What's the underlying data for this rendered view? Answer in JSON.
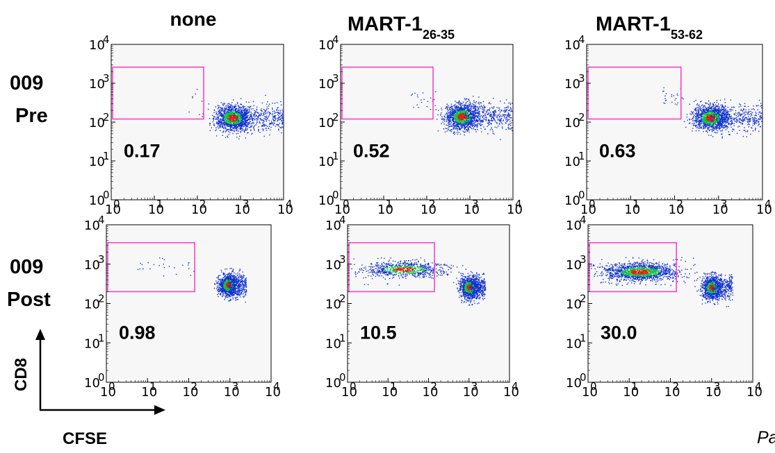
{
  "figure": {
    "column_headers": [
      {
        "main": "none",
        "sub": ""
      },
      {
        "main": "MART-1",
        "sub": "26-35"
      },
      {
        "main": "MART-1",
        "sub": "53-62"
      }
    ],
    "row_headers": [
      {
        "line1": "009",
        "line2": "Pre"
      },
      {
        "line1": "009",
        "line2": "Post"
      }
    ],
    "x_axis_label": "CFSE",
    "y_axis_label": "CD8",
    "corner_note": "Pa",
    "colors": {
      "gate": "#ff33cc",
      "panel_bg": "#f7f7f7",
      "density_low": "#1030d0",
      "density_mid": "#10c040",
      "density_high": "#e02010"
    }
  },
  "chart_data": [
    {
      "type": "scatter",
      "row_label": "009 Pre",
      "column_label": "none",
      "gate_percent": "0.17",
      "xscale": "log",
      "yscale": "log",
      "xlim": [
        1,
        10000
      ],
      "ylim": [
        1,
        10000
      ],
      "x_tick_labels": [
        "10",
        "10",
        "10",
        "10",
        "10"
      ],
      "x_tick_exponents": [
        "0",
        "1",
        "2",
        "3",
        "4"
      ],
      "y_tick_labels": [
        "10",
        "10",
        "10",
        "10",
        "10"
      ],
      "y_tick_exponents": [
        "0",
        "1",
        "2",
        "3",
        "4"
      ],
      "gate": {
        "x": [
          1,
          140
        ],
        "y": [
          120,
          2600
        ]
      },
      "clusters": [
        {
          "center": [
            650,
            130
          ],
          "spread": [
            0.2,
            0.16
          ],
          "count": 1300,
          "tail_to": 9500
        }
      ],
      "scatter_events": {
        "x": [
          60,
          140
        ],
        "y": [
          120,
          1000
        ],
        "count": 8
      }
    },
    {
      "type": "scatter",
      "row_label": "009 Pre",
      "column_label": "MART-126-35",
      "gate_percent": "0.52",
      "xscale": "log",
      "yscale": "log",
      "xlim": [
        1,
        10000
      ],
      "ylim": [
        1,
        10000
      ],
      "x_tick_labels": [
        "10",
        "10",
        "10",
        "10",
        "10"
      ],
      "x_tick_exponents": [
        "0",
        "1",
        "2",
        "3",
        "4"
      ],
      "y_tick_labels": [
        "10",
        "10",
        "10",
        "10",
        "10"
      ],
      "y_tick_exponents": [
        "0",
        "1",
        "2",
        "3",
        "4"
      ],
      "gate": {
        "x": [
          1,
          140
        ],
        "y": [
          120,
          2600
        ]
      },
      "clusters": [
        {
          "center": [
            650,
            140
          ],
          "spread": [
            0.2,
            0.16
          ],
          "count": 1300,
          "tail_to": 9500
        }
      ],
      "scatter_events": {
        "x": [
          40,
          160
        ],
        "y": [
          200,
          900
        ],
        "count": 22
      }
    },
    {
      "type": "scatter",
      "row_label": "009 Pre",
      "column_label": "MART-153-62",
      "gate_percent": "0.63",
      "xscale": "log",
      "yscale": "log",
      "xlim": [
        1,
        10000
      ],
      "ylim": [
        1,
        10000
      ],
      "x_tick_labels": [
        "10",
        "10",
        "10",
        "10",
        "10"
      ],
      "x_tick_exponents": [
        "0",
        "1",
        "2",
        "3",
        "4"
      ],
      "y_tick_labels": [
        "10",
        "10",
        "10",
        "10",
        "10"
      ],
      "y_tick_exponents": [
        "0",
        "1",
        "2",
        "3",
        "4"
      ],
      "gate": {
        "x": [
          1,
          140
        ],
        "y": [
          120,
          2600
        ]
      },
      "clusters": [
        {
          "center": [
            650,
            130
          ],
          "spread": [
            0.2,
            0.16
          ],
          "count": 1300,
          "tail_to": 9500
        }
      ],
      "scatter_events": {
        "x": [
          50,
          160
        ],
        "y": [
          250,
          900
        ],
        "count": 24
      }
    },
    {
      "type": "scatter",
      "row_label": "009 Post",
      "column_label": "none",
      "gate_percent": "0.98",
      "xscale": "log",
      "yscale": "log",
      "xlim": [
        1,
        10000
      ],
      "ylim": [
        1,
        10000
      ],
      "x_tick_labels": [
        "10",
        "10",
        "10",
        "10",
        "10"
      ],
      "x_tick_exponents": [
        "0",
        "1",
        "2",
        "3",
        "4"
      ],
      "y_tick_labels": [
        "10",
        "10",
        "10",
        "10",
        "10"
      ],
      "y_tick_exponents": [
        "0",
        "1",
        "2",
        "3",
        "4"
      ],
      "gate": {
        "x": [
          1,
          140
        ],
        "y": [
          200,
          3500
        ]
      },
      "clusters": [
        {
          "center": [
            900,
            300
          ],
          "spread": [
            0.12,
            0.14
          ],
          "count": 1000,
          "tail_to": 2500
        }
      ],
      "scatter_events": {
        "x": [
          5,
          140
        ],
        "y": [
          500,
          1500
        ],
        "count": 26
      }
    },
    {
      "type": "scatter",
      "row_label": "009 Post",
      "column_label": "MART-126-35",
      "gate_percent": "10.5",
      "xscale": "log",
      "yscale": "log",
      "xlim": [
        1,
        10000
      ],
      "ylim": [
        1,
        10000
      ],
      "x_tick_labels": [
        "10",
        "10",
        "10",
        "10",
        "10"
      ],
      "x_tick_exponents": [
        "0",
        "1",
        "2",
        "3",
        "4"
      ],
      "y_tick_labels": [
        "10",
        "10",
        "10",
        "10",
        "10"
      ],
      "y_tick_exponents": [
        "0",
        "1",
        "2",
        "3",
        "4"
      ],
      "gate": {
        "x": [
          1,
          140
        ],
        "y": [
          200,
          3500
        ]
      },
      "clusters": [
        {
          "center": [
            1000,
            260
          ],
          "spread": [
            0.12,
            0.14
          ],
          "count": 900,
          "tail_to": 2500
        },
        {
          "center": [
            25,
            750
          ],
          "spread": [
            0.5,
            0.1
          ],
          "count": 750,
          "tail_to": null
        }
      ],
      "scatter_events": {
        "x": [
          2,
          180
        ],
        "y": [
          300,
          1500
        ],
        "count": 30
      }
    },
    {
      "type": "scatter",
      "row_label": "009 Post",
      "column_label": "MART-153-62",
      "gate_percent": "30.0",
      "xscale": "log",
      "yscale": "log",
      "xlim": [
        1,
        10000
      ],
      "ylim": [
        1,
        10000
      ],
      "x_tick_labels": [
        "10",
        "10",
        "10",
        "10",
        "10"
      ],
      "x_tick_exponents": [
        "0",
        "1",
        "2",
        "3",
        "4"
      ],
      "y_tick_labels": [
        "10",
        "10",
        "10",
        "10",
        "10"
      ],
      "y_tick_exponents": [
        "0",
        "1",
        "2",
        "3",
        "4"
      ],
      "gate": {
        "x": [
          1,
          140
        ],
        "y": [
          200,
          3500
        ]
      },
      "clusters": [
        {
          "center": [
            1000,
            260
          ],
          "spread": [
            0.12,
            0.14
          ],
          "count": 900,
          "tail_to": 3200
        },
        {
          "center": [
            18,
            650
          ],
          "spread": [
            0.45,
            0.11
          ],
          "count": 1400,
          "tail_to": null
        }
      ],
      "scatter_events": {
        "x": [
          3,
          400
        ],
        "y": [
          300,
          1600
        ],
        "count": 40
      }
    }
  ]
}
